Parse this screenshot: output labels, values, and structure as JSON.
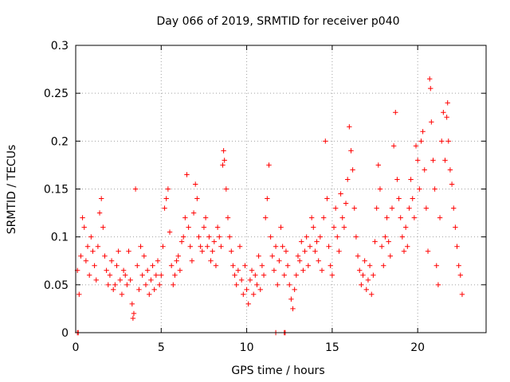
{
  "chart_data": {
    "type": "scatter",
    "title": "Day 066 of 2019, SRMTID for receiver p040",
    "xlabel": "GPS time / hours",
    "ylabel": "SRMTID / TECUs",
    "xlim": [
      0,
      24
    ],
    "ylim": [
      0,
      0.3
    ],
    "x_ticks": [
      0,
      5,
      10,
      15,
      20
    ],
    "x_tick_labels": [
      "0",
      "5",
      "10",
      "15",
      "20"
    ],
    "y_ticks": [
      0,
      0.05,
      0.1,
      0.15,
      0.2,
      0.25,
      0.3
    ],
    "y_tick_labels": [
      "0",
      "0.05",
      "0.1",
      "0.15",
      "0.2",
      "0.25",
      "0.3"
    ],
    "grid": true,
    "marker": "+",
    "color": "#ff0000",
    "series": [
      {
        "name": "SRMTID",
        "points": [
          [
            0.1,
            0.065
          ],
          [
            0.2,
            0.04
          ],
          [
            0.3,
            0.08
          ],
          [
            0.4,
            0.12
          ],
          [
            0.5,
            0.11
          ],
          [
            0.6,
            0.075
          ],
          [
            0.7,
            0.09
          ],
          [
            0.8,
            0.06
          ],
          [
            0.9,
            0.1
          ],
          [
            1.0,
            0.085
          ],
          [
            1.1,
            0.07
          ],
          [
            1.2,
            0.055
          ],
          [
            1.3,
            0.09
          ],
          [
            1.4,
            0.125
          ],
          [
            1.5,
            0.14
          ],
          [
            1.6,
            0.11
          ],
          [
            1.7,
            0.08
          ],
          [
            1.8,
            0.065
          ],
          [
            1.9,
            0.05
          ],
          [
            2.0,
            0.06
          ],
          [
            2.1,
            0.075
          ],
          [
            2.2,
            0.045
          ],
          [
            2.3,
            0.05
          ],
          [
            2.4,
            0.07
          ],
          [
            2.5,
            0.085
          ],
          [
            2.6,
            0.055
          ],
          [
            2.7,
            0.04
          ],
          [
            2.8,
            0.065
          ],
          [
            2.9,
            0.06
          ],
          [
            3.0,
            0.05
          ],
          [
            3.1,
            0.085
          ],
          [
            3.2,
            0.055
          ],
          [
            3.3,
            0.03
          ],
          [
            3.35,
            0.015
          ],
          [
            3.4,
            0.02
          ],
          [
            3.5,
            0.15
          ],
          [
            3.6,
            0.07
          ],
          [
            3.7,
            0.045
          ],
          [
            3.8,
            0.09
          ],
          [
            3.9,
            0.06
          ],
          [
            4.0,
            0.08
          ],
          [
            4.1,
            0.05
          ],
          [
            4.2,
            0.065
          ],
          [
            4.3,
            0.04
          ],
          [
            4.4,
            0.055
          ],
          [
            4.5,
            0.07
          ],
          [
            4.6,
            0.045
          ],
          [
            4.7,
            0.06
          ],
          [
            4.8,
            0.075
          ],
          [
            4.9,
            0.05
          ],
          [
            5.0,
            0.06
          ],
          [
            5.1,
            0.09
          ],
          [
            5.2,
            0.13
          ],
          [
            5.3,
            0.14
          ],
          [
            5.4,
            0.15
          ],
          [
            5.5,
            0.105
          ],
          [
            5.6,
            0.07
          ],
          [
            5.7,
            0.05
          ],
          [
            5.8,
            0.06
          ],
          [
            5.9,
            0.075
          ],
          [
            6.0,
            0.08
          ],
          [
            6.1,
            0.065
          ],
          [
            6.2,
            0.095
          ],
          [
            6.3,
            0.1
          ],
          [
            6.4,
            0.12
          ],
          [
            6.5,
            0.165
          ],
          [
            6.6,
            0.11
          ],
          [
            6.7,
            0.09
          ],
          [
            6.8,
            0.075
          ],
          [
            6.9,
            0.125
          ],
          [
            7.0,
            0.155
          ],
          [
            7.1,
            0.14
          ],
          [
            7.2,
            0.1
          ],
          [
            7.3,
            0.09
          ],
          [
            7.4,
            0.085
          ],
          [
            7.5,
            0.11
          ],
          [
            7.6,
            0.12
          ],
          [
            7.7,
            0.09
          ],
          [
            7.8,
            0.1
          ],
          [
            7.9,
            0.075
          ],
          [
            8.0,
            0.085
          ],
          [
            8.1,
            0.095
          ],
          [
            8.2,
            0.07
          ],
          [
            8.3,
            0.11
          ],
          [
            8.4,
            0.1
          ],
          [
            8.5,
            0.09
          ],
          [
            8.6,
            0.175
          ],
          [
            8.65,
            0.19
          ],
          [
            8.7,
            0.18
          ],
          [
            8.8,
            0.15
          ],
          [
            8.9,
            0.12
          ],
          [
            9.0,
            0.1
          ],
          [
            9.1,
            0.085
          ],
          [
            9.2,
            0.07
          ],
          [
            9.3,
            0.06
          ],
          [
            9.4,
            0.05
          ],
          [
            9.5,
            0.065
          ],
          [
            9.6,
            0.09
          ],
          [
            9.7,
            0.055
          ],
          [
            9.8,
            0.04
          ],
          [
            9.9,
            0.07
          ],
          [
            10.0,
            0.045
          ],
          [
            10.1,
            0.03
          ],
          [
            10.2,
            0.055
          ],
          [
            10.3,
            0.065
          ],
          [
            10.4,
            0.04
          ],
          [
            10.5,
            0.06
          ],
          [
            10.6,
            0.05
          ],
          [
            10.7,
            0.08
          ],
          [
            10.8,
            0.045
          ],
          [
            10.9,
            0.07
          ],
          [
            11.0,
            0.06
          ],
          [
            11.1,
            0.12
          ],
          [
            11.2,
            0.14
          ],
          [
            11.3,
            0.175
          ],
          [
            11.4,
            0.1
          ],
          [
            11.5,
            0.08
          ],
          [
            11.6,
            0.065
          ],
          [
            11.7,
            0.09
          ],
          [
            11.8,
            0.05
          ],
          [
            11.9,
            0.075
          ],
          [
            12.0,
            0.11
          ],
          [
            12.1,
            0.09
          ],
          [
            12.2,
            0.06
          ],
          [
            12.3,
            0.085
          ],
          [
            12.4,
            0.07
          ],
          [
            12.5,
            0.05
          ],
          [
            12.6,
            0.035
          ],
          [
            12.7,
            0.025
          ],
          [
            12.8,
            0.045
          ],
          [
            12.9,
            0.06
          ],
          [
            13.0,
            0.08
          ],
          [
            13.1,
            0.075
          ],
          [
            13.2,
            0.095
          ],
          [
            13.3,
            0.065
          ],
          [
            13.4,
            0.085
          ],
          [
            13.5,
            0.1
          ],
          [
            13.6,
            0.07
          ],
          [
            13.7,
            0.09
          ],
          [
            13.8,
            0.12
          ],
          [
            13.9,
            0.11
          ],
          [
            14.0,
            0.085
          ],
          [
            14.1,
            0.095
          ],
          [
            14.2,
            0.075
          ],
          [
            14.3,
            0.1
          ],
          [
            14.4,
            0.065
          ],
          [
            14.5,
            0.12
          ],
          [
            14.6,
            0.2
          ],
          [
            14.7,
            0.14
          ],
          [
            14.8,
            0.09
          ],
          [
            14.9,
            0.07
          ],
          [
            15.0,
            0.06
          ],
          [
            15.1,
            0.11
          ],
          [
            15.2,
            0.13
          ],
          [
            15.3,
            0.1
          ],
          [
            15.4,
            0.085
          ],
          [
            15.5,
            0.145
          ],
          [
            15.6,
            0.12
          ],
          [
            15.7,
            0.11
          ],
          [
            15.8,
            0.135
          ],
          [
            15.9,
            0.16
          ],
          [
            16.0,
            0.215
          ],
          [
            16.1,
            0.19
          ],
          [
            16.2,
            0.17
          ],
          [
            16.3,
            0.13
          ],
          [
            16.4,
            0.1
          ],
          [
            16.5,
            0.08
          ],
          [
            16.6,
            0.065
          ],
          [
            16.7,
            0.05
          ],
          [
            16.8,
            0.06
          ],
          [
            16.9,
            0.075
          ],
          [
            17.0,
            0.045
          ],
          [
            17.1,
            0.055
          ],
          [
            17.2,
            0.07
          ],
          [
            17.3,
            0.04
          ],
          [
            17.4,
            0.06
          ],
          [
            17.5,
            0.095
          ],
          [
            17.6,
            0.13
          ],
          [
            17.7,
            0.175
          ],
          [
            17.8,
            0.15
          ],
          [
            17.9,
            0.09
          ],
          [
            18.0,
            0.07
          ],
          [
            18.1,
            0.1
          ],
          [
            18.2,
            0.12
          ],
          [
            18.3,
            0.095
          ],
          [
            18.4,
            0.08
          ],
          [
            18.5,
            0.13
          ],
          [
            18.6,
            0.195
          ],
          [
            18.7,
            0.23
          ],
          [
            18.8,
            0.16
          ],
          [
            18.9,
            0.14
          ],
          [
            19.0,
            0.12
          ],
          [
            19.1,
            0.1
          ],
          [
            19.2,
            0.085
          ],
          [
            19.3,
            0.11
          ],
          [
            19.4,
            0.09
          ],
          [
            19.5,
            0.13
          ],
          [
            19.6,
            0.16
          ],
          [
            19.7,
            0.14
          ],
          [
            19.8,
            0.12
          ],
          [
            19.9,
            0.195
          ],
          [
            20.0,
            0.18
          ],
          [
            20.1,
            0.15
          ],
          [
            20.2,
            0.2
          ],
          [
            20.3,
            0.21
          ],
          [
            20.4,
            0.17
          ],
          [
            20.5,
            0.13
          ],
          [
            20.6,
            0.085
          ],
          [
            20.7,
            0.265
          ],
          [
            20.75,
            0.255
          ],
          [
            20.8,
            0.22
          ],
          [
            20.9,
            0.18
          ],
          [
            21.0,
            0.15
          ],
          [
            21.1,
            0.07
          ],
          [
            21.2,
            0.05
          ],
          [
            21.3,
            0.12
          ],
          [
            21.4,
            0.2
          ],
          [
            21.5,
            0.23
          ],
          [
            21.6,
            0.18
          ],
          [
            21.7,
            0.225
          ],
          [
            21.75,
            0.24
          ],
          [
            21.8,
            0.2
          ],
          [
            21.9,
            0.17
          ],
          [
            22.0,
            0.155
          ],
          [
            22.1,
            0.13
          ],
          [
            22.2,
            0.11
          ],
          [
            22.3,
            0.09
          ],
          [
            22.4,
            0.07
          ],
          [
            22.5,
            0.06
          ],
          [
            22.6,
            0.04
          ]
        ]
      }
    ],
    "zero_markers": [
      [
        0.1,
        0
      ],
      [
        0.15,
        0
      ],
      [
        11.7,
        0
      ],
      [
        12.2,
        0
      ],
      [
        12.25,
        0
      ]
    ]
  }
}
